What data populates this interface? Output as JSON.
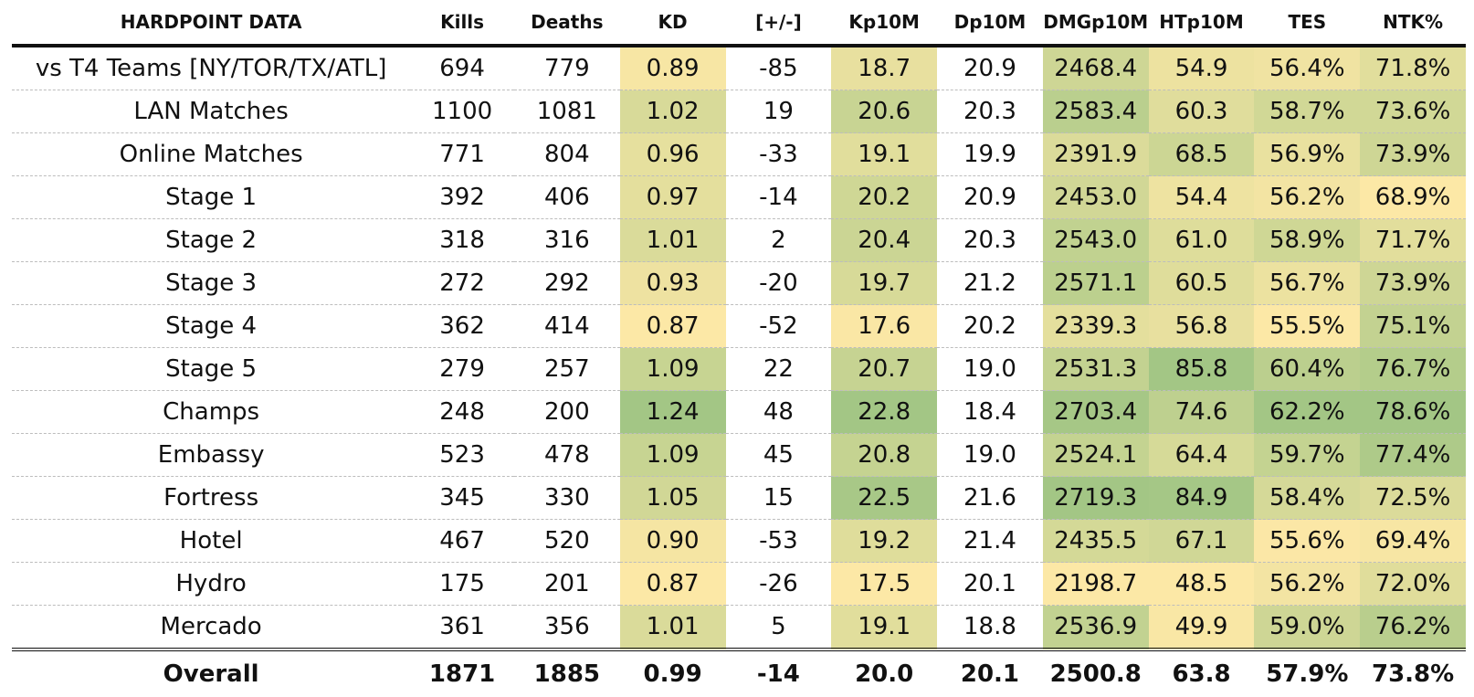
{
  "chart_data": {
    "type": "table",
    "title": "HARDPOINT DATA",
    "columns": [
      "Kills",
      "Deaths",
      "KD",
      "[+/-]",
      "Kp10M",
      "Dp10M",
      "DMGp10M",
      "HTp10M",
      "TES",
      "NTK%"
    ],
    "rows": [
      {
        "label": "vs T4 Teams [NY/TOR/TX/ATL]",
        "values": [
          "694",
          "779",
          "0.89",
          "-85",
          "18.7",
          "20.9",
          "2468.4",
          "54.9",
          "56.4%",
          "71.8%"
        ]
      },
      {
        "label": "LAN Matches",
        "values": [
          "1100",
          "1081",
          "1.02",
          "19",
          "20.6",
          "20.3",
          "2583.4",
          "60.3",
          "58.7%",
          "73.6%"
        ]
      },
      {
        "label": "Online Matches",
        "values": [
          "771",
          "804",
          "0.96",
          "-33",
          "19.1",
          "19.9",
          "2391.9",
          "68.5",
          "56.9%",
          "73.9%"
        ]
      },
      {
        "label": "Stage 1",
        "values": [
          "392",
          "406",
          "0.97",
          "-14",
          "20.2",
          "20.9",
          "2453.0",
          "54.4",
          "56.2%",
          "68.9%"
        ]
      },
      {
        "label": "Stage 2",
        "values": [
          "318",
          "316",
          "1.01",
          "2",
          "20.4",
          "20.3",
          "2543.0",
          "61.0",
          "58.9%",
          "71.7%"
        ]
      },
      {
        "label": "Stage 3",
        "values": [
          "272",
          "292",
          "0.93",
          "-20",
          "19.7",
          "21.2",
          "2571.1",
          "60.5",
          "56.7%",
          "73.9%"
        ]
      },
      {
        "label": "Stage 4",
        "values": [
          "362",
          "414",
          "0.87",
          "-52",
          "17.6",
          "20.2",
          "2339.3",
          "56.8",
          "55.5%",
          "75.1%"
        ]
      },
      {
        "label": "Stage 5",
        "values": [
          "279",
          "257",
          "1.09",
          "22",
          "20.7",
          "19.0",
          "2531.3",
          "85.8",
          "60.4%",
          "76.7%"
        ]
      },
      {
        "label": "Champs",
        "values": [
          "248",
          "200",
          "1.24",
          "48",
          "22.8",
          "18.4",
          "2703.4",
          "74.6",
          "62.2%",
          "78.6%"
        ]
      },
      {
        "label": "Embassy",
        "values": [
          "523",
          "478",
          "1.09",
          "45",
          "20.8",
          "19.0",
          "2524.1",
          "64.4",
          "59.7%",
          "77.4%"
        ]
      },
      {
        "label": "Fortress",
        "values": [
          "345",
          "330",
          "1.05",
          "15",
          "22.5",
          "21.6",
          "2719.3",
          "84.9",
          "58.4%",
          "72.5%"
        ]
      },
      {
        "label": "Hotel",
        "values": [
          "467",
          "520",
          "0.90",
          "-53",
          "19.2",
          "21.4",
          "2435.5",
          "67.1",
          "55.6%",
          "69.4%"
        ]
      },
      {
        "label": "Hydro",
        "values": [
          "175",
          "201",
          "0.87",
          "-26",
          "17.5",
          "20.1",
          "2198.7",
          "48.5",
          "56.2%",
          "72.0%"
        ]
      },
      {
        "label": "Mercado",
        "values": [
          "361",
          "356",
          "1.01",
          "5",
          "19.1",
          "18.8",
          "2536.9",
          "49.9",
          "59.0%",
          "76.2%"
        ]
      }
    ],
    "total": {
      "label": "Overall",
      "values": [
        "1871",
        "1885",
        "0.99",
        "-14",
        "20.0",
        "20.1",
        "2500.8",
        "63.8",
        "57.9%",
        "73.8%"
      ]
    },
    "heatmap_columns": [
      "KD",
      "Kp10M",
      "DMGp10M",
      "HTp10M",
      "TES",
      "NTK%"
    ],
    "colors": {
      "low": "#fce8a6",
      "high": "#a3c685",
      "text": "#111111",
      "rule": "#111111",
      "grid": "#bdbdbd"
    }
  }
}
